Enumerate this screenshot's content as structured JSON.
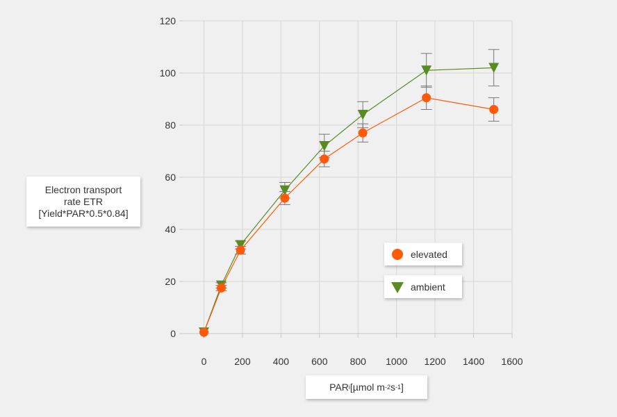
{
  "chart_data": {
    "type": "line",
    "xlabel_parts": {
      "base": "PAR",
      "sub": "i",
      "mid": " [µmol m",
      "sup1": "-2",
      "s": "s",
      "sup2": "-1",
      "end": "]"
    },
    "ylabel_lines": [
      "Electron transport",
      "rate ETR",
      "[Yield*PAR*0.5*0.84]"
    ],
    "xlim": [
      -110,
      1600
    ],
    "ylim": [
      0,
      120
    ],
    "xticks": [
      0,
      200,
      400,
      600,
      800,
      1000,
      1200,
      1400,
      1600
    ],
    "yticks": [
      0,
      20,
      40,
      60,
      80,
      100,
      120
    ],
    "grid": true,
    "legend_position": "right",
    "series": [
      {
        "name": "elevated",
        "color": "#ff5a0a",
        "marker": "circle",
        "x": [
          0,
          90,
          190,
          420,
          625,
          825,
          1155,
          1505
        ],
        "y": [
          0.5,
          17.5,
          32,
          52,
          67,
          77,
          90.5,
          86
        ],
        "err": [
          0,
          1,
          1.5,
          2.5,
          3,
          3.5,
          4.5,
          4.5
        ]
      },
      {
        "name": "ambient",
        "color": "#5a8a22",
        "marker": "triangle",
        "x": [
          0,
          90,
          190,
          420,
          625,
          825,
          1155,
          1505
        ],
        "y": [
          0.5,
          18.5,
          34,
          55,
          72,
          84,
          101,
          102
        ],
        "err": [
          0,
          1,
          1.5,
          3,
          4.5,
          5,
          6.5,
          7
        ]
      }
    ]
  }
}
